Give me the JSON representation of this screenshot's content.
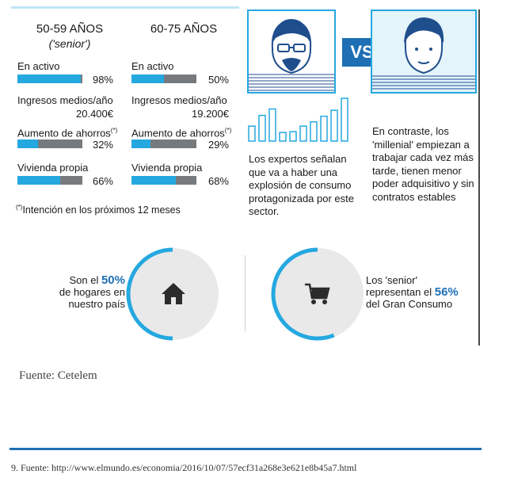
{
  "chart_data": {
    "type": "bar",
    "groups": [
      {
        "title": "50-59 AÑOS",
        "subtitle": "('senior')",
        "metrics": [
          {
            "label": "En activo",
            "display": "98%",
            "percent": 98
          },
          {
            "label": "Ingresos medios/año",
            "display": "20.400€"
          },
          {
            "label": "Aumento de ahorros",
            "marker": "(*)",
            "display": "32%",
            "percent": 32
          },
          {
            "label": "Vivienda propia",
            "display": "66%",
            "percent": 66
          }
        ]
      },
      {
        "title": "60-75 AÑOS",
        "subtitle": "",
        "metrics": [
          {
            "label": "En activo",
            "display": "50%",
            "percent": 50
          },
          {
            "label": "Ingresos medios/año",
            "display": "19.200€"
          },
          {
            "label": "Aumento de ahorros",
            "marker": "(*)",
            "display": "29%",
            "percent": 29
          },
          {
            "label": "Vivienda propia",
            "display": "68%",
            "percent": 68
          }
        ]
      }
    ],
    "footnote_marker": "(*)",
    "footnote_text": "Intención en los próximos 12 meses",
    "mini_bar_heights": [
      0.35,
      0.6,
      0.75,
      0.2,
      0.22,
      0.35,
      0.45,
      0.58,
      0.72,
      1.0
    ],
    "comparison": {
      "vs_label": "VS",
      "left_text": "Los expertos señalan que va a haber una explosión de consumo protagonizada por este sector.",
      "right_text": "En contraste, los 'millenial' empiezan a trabajar cada vez más tarde, tienen menor poder adquisitivo y sin contratos estables"
    },
    "stats": [
      {
        "prefix": "Son el",
        "value": "50%",
        "percent": 50,
        "rest": "de hogares en nuestro país",
        "icon": "home-icon"
      },
      {
        "prefix": "Los 'senior' representan el",
        "value": "56%",
        "percent": 56,
        "rest": "del Gran Consumo",
        "icon": "shopping-cart-icon"
      }
    ],
    "colors": {
      "accent": "#25a8e0",
      "remainder": "#777a7d",
      "highlight": "#1f6fb4",
      "circle_bg": "#e9e9e9"
    }
  },
  "source": "Fuente: Cetelem",
  "footnote_url": "9. Fuente: http://www.elmundo.es/economia/2016/10/07/57ecf31a268e3e621e8b45a7.html"
}
